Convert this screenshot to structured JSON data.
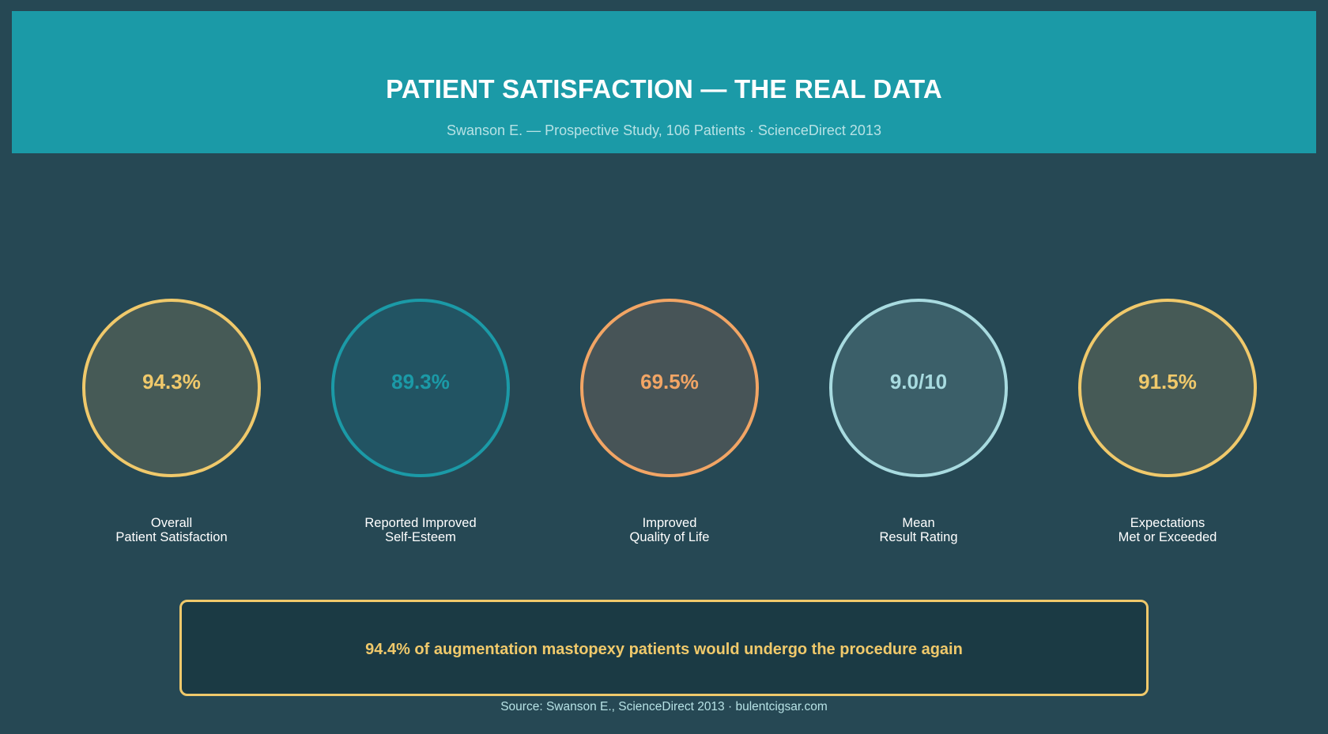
{
  "header": {
    "title": "PATIENT SATISFACTION — THE REAL DATA",
    "subtitle": "Swanson E. — Prospective Study, 106 Patients · ScienceDirect 2013"
  },
  "chart_data": {
    "type": "table",
    "stats": [
      {
        "value_text": "94.3%",
        "value": 94.3,
        "unit": "%",
        "label_line1": "Overall",
        "label_line2": "Patient Satisfaction",
        "color": "#f0c96b",
        "fill": "#465a56"
      },
      {
        "value_text": "89.3%",
        "value": 89.3,
        "unit": "%",
        "label_line1": "Reported Improved",
        "label_line2": "Self-Esteem",
        "color": "#1b9aa7",
        "fill": "#225463"
      },
      {
        "value_text": "69.5%",
        "value": 69.5,
        "unit": "%",
        "label_line1": "Improved",
        "label_line2": "Quality of Life",
        "color": "#f2a565",
        "fill": "#475457"
      },
      {
        "value_text": "9.0/10",
        "value": 9.0,
        "unit": "/10",
        "label_line1": "Mean",
        "label_line2": "Result Rating",
        "color": "#a8dbe0",
        "fill": "#3b5f69"
      },
      {
        "value_text": "91.5%",
        "value": 91.5,
        "unit": "%",
        "label_line1": "Expectations",
        "label_line2": "Met or Exceeded",
        "color": "#f0c96b",
        "fill": "#465a56"
      }
    ]
  },
  "callout": {
    "text": "94.4% of augmentation mastopexy patients would undergo the procedure again"
  },
  "footer": {
    "source": "Source: Swanson E., ScienceDirect 2013 · bulentcigsar.com"
  }
}
